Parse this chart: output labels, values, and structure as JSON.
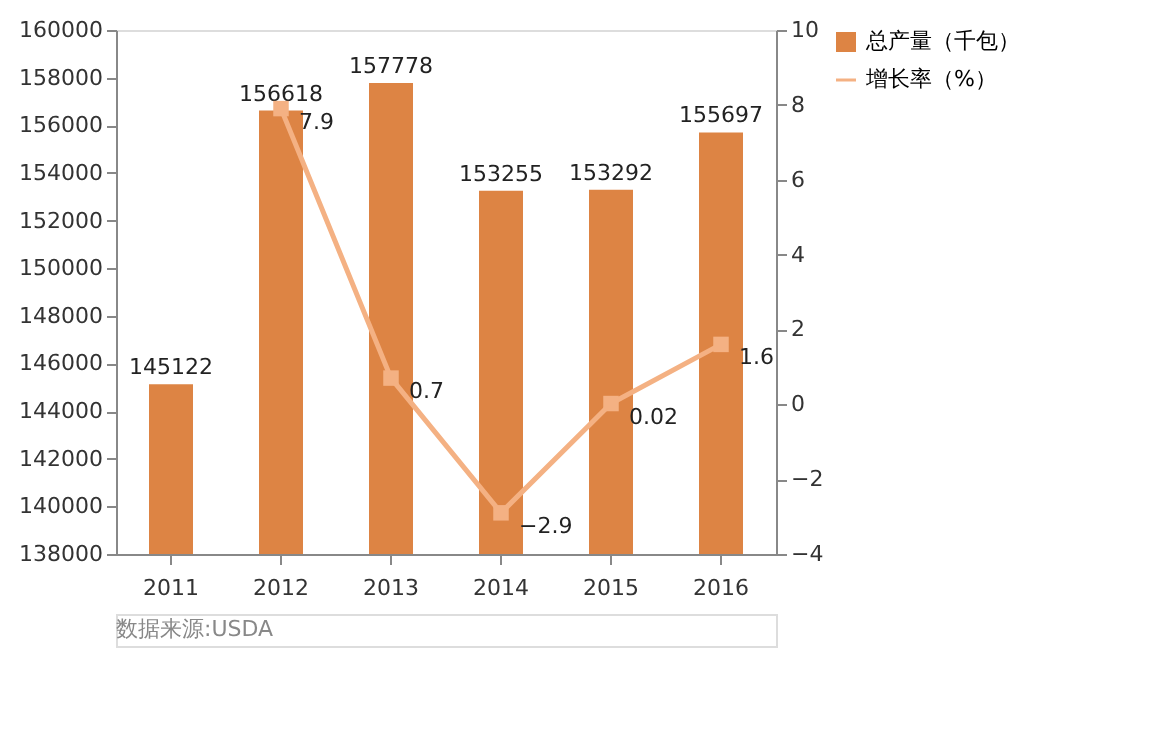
{
  "chart_data": {
    "type": "bar",
    "categories": [
      "2011",
      "2012",
      "2013",
      "2014",
      "2015",
      "2016"
    ],
    "series": [
      {
        "name": "总产量（千包）",
        "color": "#dd8444",
        "values": [
          145122,
          156618,
          157778,
          153255,
          153292,
          155697
        ]
      },
      {
        "name": "增长率（%）",
        "type": "line",
        "axis": "y2",
        "color": "#f4b183",
        "marker": "square",
        "values": [
          null,
          7.9,
          0.7,
          -2.9,
          0.02,
          1.6
        ]
      }
    ],
    "ylim": [
      138000,
      160000
    ],
    "yticks": [
      138000,
      140000,
      142000,
      144000,
      146000,
      148000,
      150000,
      152000,
      154000,
      156000,
      158000,
      160000
    ],
    "y2lim": [
      -4,
      10
    ],
    "y2ticks": [
      -4,
      -2,
      0,
      2,
      4,
      6,
      8,
      10
    ],
    "data_labels": true,
    "grid": false,
    "legend": "right",
    "annotations": [
      "数据来源:USDA"
    ]
  }
}
